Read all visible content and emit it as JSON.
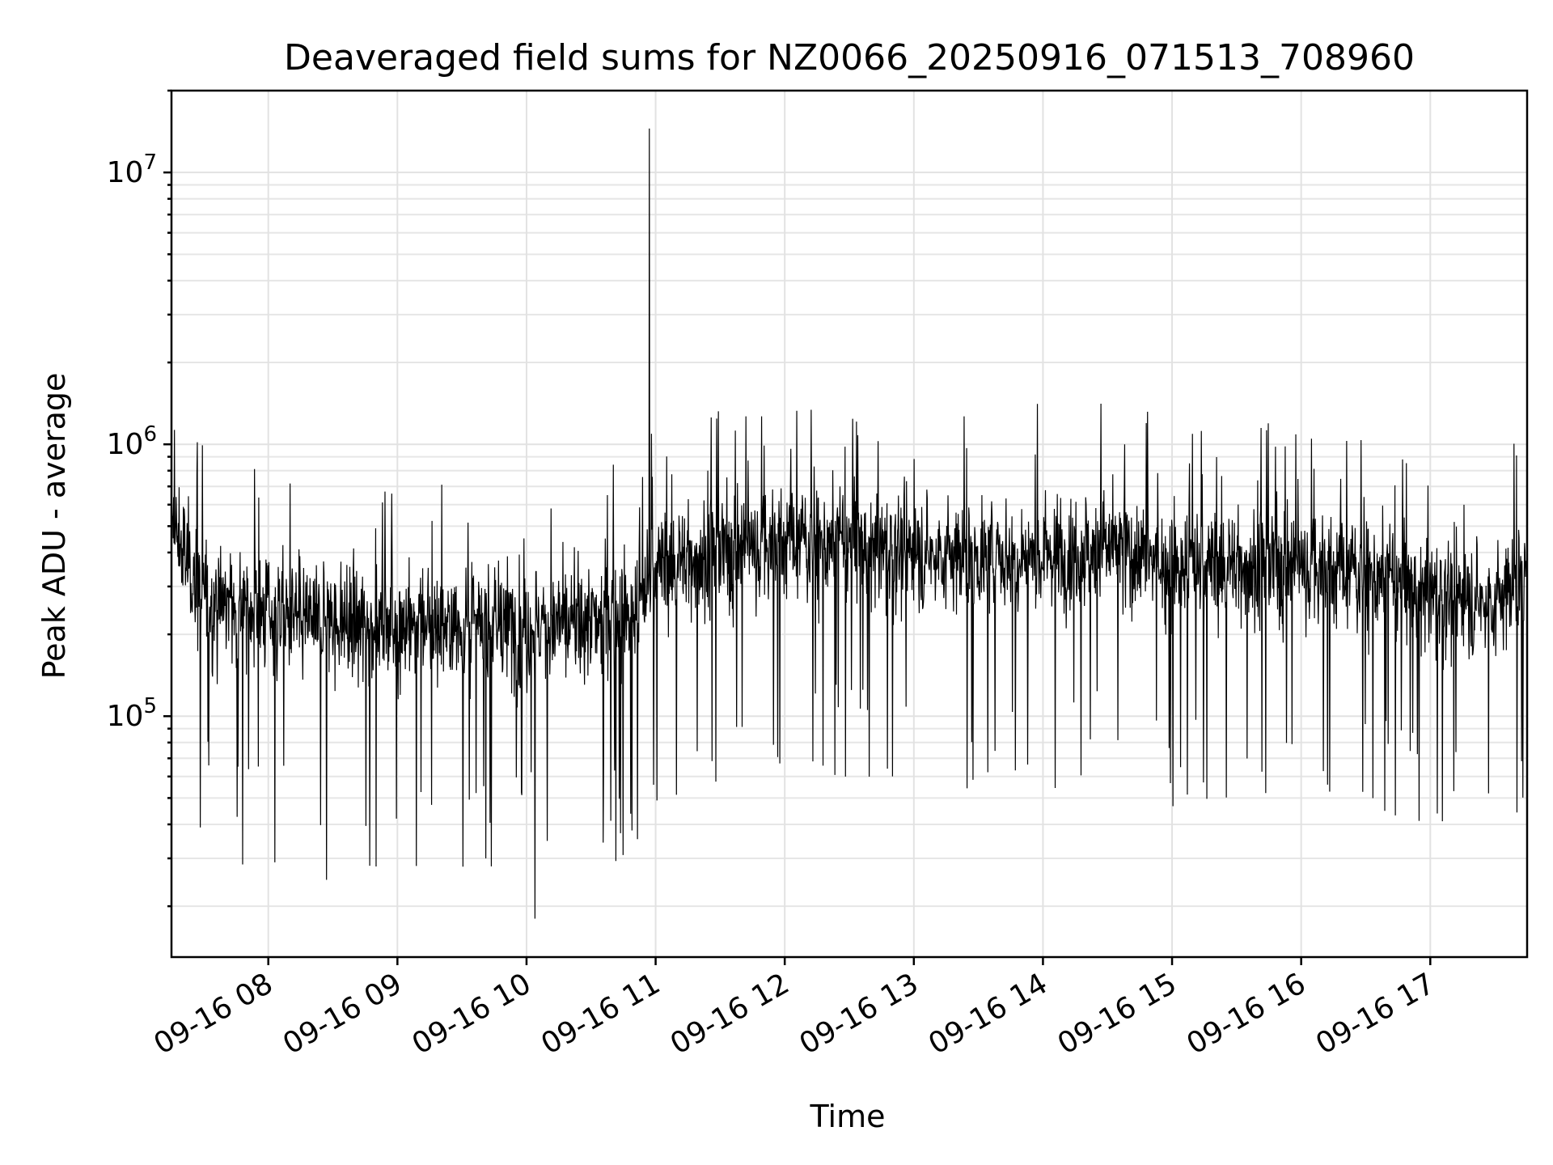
{
  "chart_data": {
    "type": "line",
    "title": "Deaveraged field sums for NZ0066_20250916_071513_708960",
    "xlabel": "Time",
    "ylabel": "Peak ADU - average",
    "xscale": "time",
    "yscale": "log",
    "xlim": [
      "2025-09-16 07:15",
      "2025-09-16 17:45"
    ],
    "ylim": [
      13000,
      20000000
    ],
    "x_ticks": [
      "09-16 08",
      "09-16 09",
      "09-16 10",
      "09-16 11",
      "09-16 12",
      "09-16 13",
      "09-16 14",
      "09-16 15",
      "09-16 16",
      "09-16 17"
    ],
    "x_tick_times": [
      "2025-09-16 08:00",
      "2025-09-16 09:00",
      "2025-09-16 10:00",
      "2025-09-16 11:00",
      "2025-09-16 12:00",
      "2025-09-16 13:00",
      "2025-09-16 14:00",
      "2025-09-16 15:00",
      "2025-09-16 16:00",
      "2025-09-16 17:00"
    ],
    "y_ticks": [
      {
        "value": 100000,
        "base": "10",
        "exp": "5"
      },
      {
        "value": 1000000,
        "base": "10",
        "exp": "6"
      },
      {
        "value": 10000000,
        "base": "10",
        "exp": "7"
      }
    ],
    "grid": true,
    "series": [
      {
        "color": "#000000",
        "envelope": [
          {
            "time": "2025-09-16 07:15",
            "median": 500000
          },
          {
            "time": "2025-09-16 07:30",
            "median": 270000
          },
          {
            "time": "2025-09-16 08:00",
            "median": 240000
          },
          {
            "time": "2025-09-16 08:30",
            "median": 220000
          },
          {
            "time": "2025-09-16 09:00",
            "median": 220000
          },
          {
            "time": "2025-09-16 09:30",
            "median": 220000
          },
          {
            "time": "2025-09-16 10:00",
            "median": 210000
          },
          {
            "time": "2025-09-16 10:30",
            "median": 220000
          },
          {
            "time": "2025-09-16 10:54",
            "median": 250000
          },
          {
            "time": "2025-09-16 10:57",
            "median": 350000
          },
          {
            "time": "2025-09-16 11:30",
            "median": 400000
          },
          {
            "time": "2025-09-16 12:00",
            "median": 450000
          },
          {
            "time": "2025-09-16 12:30",
            "median": 430000
          },
          {
            "time": "2025-09-16 13:00",
            "median": 400000
          },
          {
            "time": "2025-09-16 13:30",
            "median": 380000
          },
          {
            "time": "2025-09-16 14:00",
            "median": 400000
          },
          {
            "time": "2025-09-16 14:30",
            "median": 420000
          },
          {
            "time": "2025-09-16 15:00",
            "median": 360000
          },
          {
            "time": "2025-09-16 15:30",
            "median": 360000
          },
          {
            "time": "2025-09-16 16:00",
            "median": 360000
          },
          {
            "time": "2025-09-16 16:30",
            "median": 340000
          },
          {
            "time": "2025-09-16 16:54",
            "median": 290000
          },
          {
            "time": "2025-09-16 17:30",
            "median": 260000
          },
          {
            "time": "2025-09-16 17:45",
            "median": 340000
          }
        ],
        "peaks": [
          {
            "time": "2025-09-16 10:57",
            "value": 14500000
          },
          {
            "time": "2025-09-16 12:34",
            "value": 1080000
          },
          {
            "time": "2025-09-16 14:38",
            "value": 1000000
          },
          {
            "time": "2025-09-16 15:48",
            "value": 980000
          },
          {
            "time": "2025-09-16 17:40",
            "value": 910000
          },
          {
            "time": "2025-09-16 07:15",
            "value": 780000
          }
        ],
        "dips": [
          {
            "time": "2025-09-16 10:04",
            "value": 18000
          },
          {
            "time": "2025-09-16 08:27",
            "value": 25000
          },
          {
            "time": "2025-09-16 08:50",
            "value": 28000
          },
          {
            "time": "2025-09-16 07:48",
            "value": 28500
          },
          {
            "time": "2025-09-16 08:03",
            "value": 29000
          },
          {
            "time": "2025-09-16 09:41",
            "value": 30000
          },
          {
            "time": "2025-09-16 10:49",
            "value": 38000
          },
          {
            "time": "2025-09-16 15:11",
            "value": 97000
          },
          {
            "time": "2025-09-16 17:27",
            "value": 52000
          },
          {
            "time": "2025-09-16 17:11",
            "value": 53000
          }
        ]
      }
    ]
  }
}
